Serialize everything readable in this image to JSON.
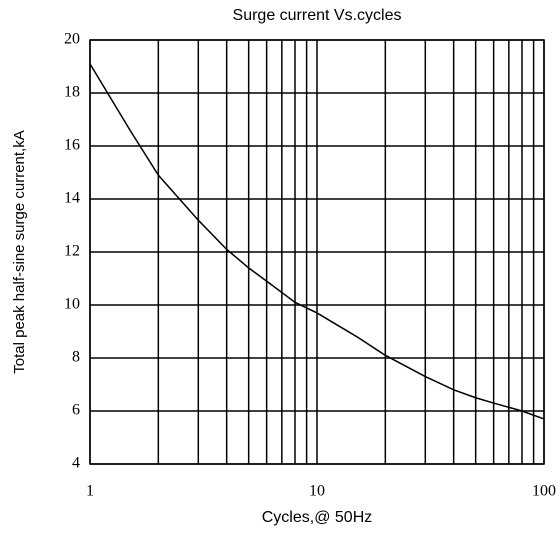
{
  "chart_data": {
    "type": "line",
    "title": "Surge current Vs.cycles",
    "xlabel": "Cycles,@ 50Hz",
    "ylabel": "Total peak half-sine surge current,kA",
    "xscale": "log",
    "xlim": [
      1,
      100
    ],
    "xticks": [
      1,
      10,
      100
    ],
    "xminor": [
      2,
      3,
      4,
      5,
      6,
      7,
      8,
      9,
      20,
      30,
      40,
      50,
      60,
      70,
      80,
      90
    ],
    "ylim": [
      4,
      20
    ],
    "yticks": [
      4,
      6,
      8,
      10,
      12,
      14,
      16,
      18,
      20
    ],
    "grid": true,
    "series": [
      {
        "color": "#000000",
        "x": [
          1,
          1.5,
          2,
          3,
          4,
          5,
          6,
          8,
          10,
          15,
          20,
          30,
          40,
          50,
          60,
          80,
          100
        ],
        "values": [
          19.1,
          16.6,
          14.9,
          13.2,
          12.1,
          11.4,
          10.9,
          10.1,
          9.7,
          8.8,
          8.1,
          7.3,
          6.8,
          6.5,
          6.3,
          6.0,
          5.7
        ]
      }
    ]
  }
}
